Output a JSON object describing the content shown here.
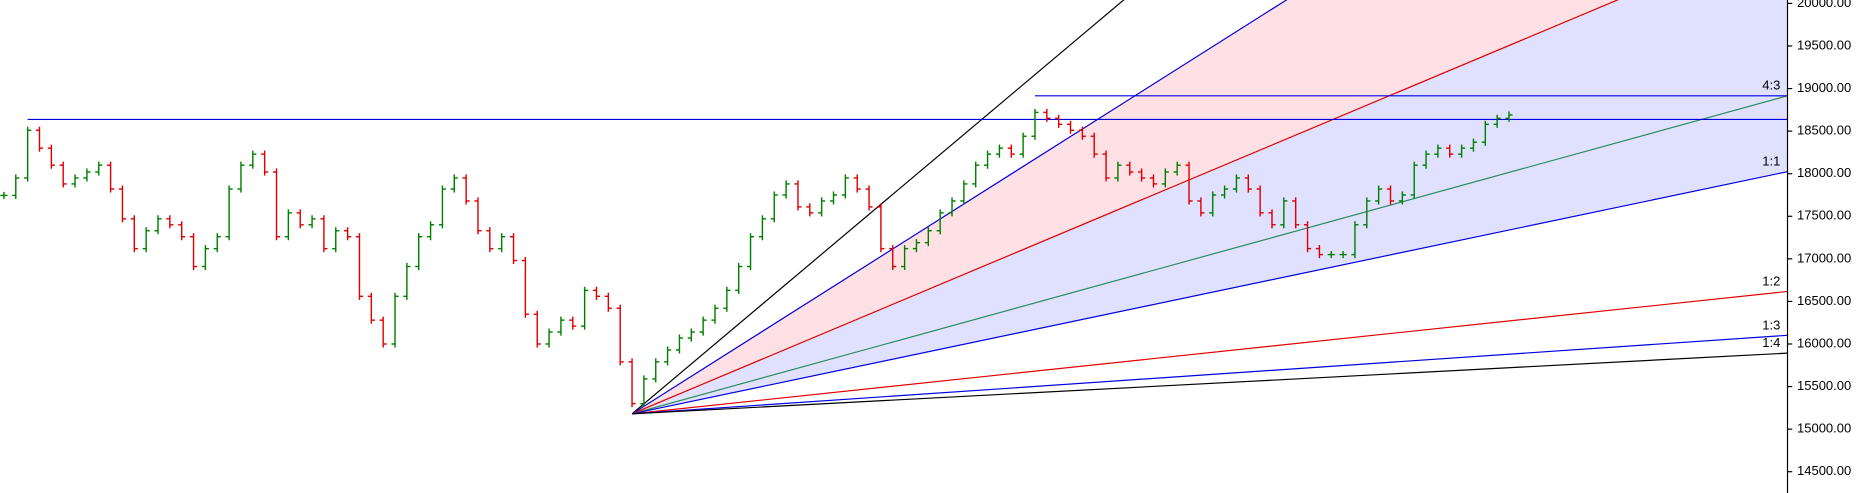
{
  "chart_data": {
    "type": "price_bars",
    "up_color": "#008000",
    "down_color": "#e00000",
    "ylim": [
      14250,
      20040
    ],
    "yticks": [
      {
        "value": 14500,
        "label": "14500.00"
      },
      {
        "value": 15000,
        "label": "15000.00"
      },
      {
        "value": 15500,
        "label": "15500.00"
      },
      {
        "value": 16000,
        "label": "16000.00"
      },
      {
        "value": 16500,
        "label": "16500.00"
      },
      {
        "value": 17000,
        "label": "17000.00"
      },
      {
        "value": 17500,
        "label": "17500.00"
      },
      {
        "value": 18000,
        "label": "18000.00"
      },
      {
        "value": 18500,
        "label": "18500.00"
      },
      {
        "value": 19000,
        "label": "19000.00"
      },
      {
        "value": 19500,
        "label": "19500.00"
      },
      {
        "value": 20000,
        "label": "20000.00"
      }
    ],
    "values": [
      17745,
      17950,
      18510,
      18300,
      18100,
      17880,
      17950,
      18020,
      18100,
      17820,
      17470,
      17120,
      17330,
      17470,
      17400,
      17260,
      16910,
      17120,
      17260,
      17820,
      18100,
      18230,
      18020,
      17260,
      17540,
      17400,
      17470,
      17120,
      17330,
      17260,
      16560,
      16280,
      16000,
      16560,
      16910,
      17260,
      17400,
      17820,
      17950,
      17680,
      17330,
      17120,
      17260,
      16980,
      16350,
      16000,
      16140,
      16280,
      16210,
      16630,
      16560,
      16420,
      15790,
      15300,
      15590,
      15790,
      15930,
      16070,
      16140,
      16280,
      16420,
      16630,
      16910,
      17260,
      17470,
      17750,
      17880,
      17610,
      17540,
      17680,
      17750,
      17950,
      17820,
      17610,
      17120,
      16910,
      17120,
      17190,
      17330,
      17540,
      17680,
      17880,
      18100,
      18230,
      18300,
      18230,
      18440,
      18720,
      18650,
      18580,
      18510,
      18440,
      18230,
      17950,
      18100,
      18020,
      17950,
      17880,
      18020,
      18100,
      17680,
      17540,
      17750,
      17820,
      17950,
      17820,
      17540,
      17400,
      17680,
      17400,
      17120,
      17050,
      17050,
      17050,
      17400,
      17680,
      17820,
      17680,
      17750,
      18100,
      18230,
      18300,
      18230,
      18300,
      18370,
      18580,
      18650,
      18690
    ],
    "levels": [
      {
        "value": 18637,
        "start_index": 2,
        "color": "#0000e0"
      },
      {
        "value": 18915,
        "start_index": 87,
        "color": "#0000e0"
      }
    ],
    "fan": {
      "origin_index": 53,
      "origin_value": 15180,
      "lines": [
        {
          "end_value": 26603,
          "color": "#000000"
        },
        {
          "end_value": 23762,
          "color": "#0000e0",
          "fill_below": "#ffe0e4"
        },
        {
          "end_value": 20879,
          "color": "#e00000",
          "fill_below": "#e0e0ff"
        },
        {
          "label": "4:3",
          "end_value": 18915,
          "color": "#2e8b57",
          "fill_below": "#e0e0ff"
        },
        {
          "label": "1:1",
          "end_value": 18024,
          "color": "#0000e0"
        },
        {
          "label": "1:2",
          "end_value": 16617,
          "color": "#e00000"
        },
        {
          "label": "1:3",
          "end_value": 16102,
          "color": "#0000e0"
        },
        {
          "label": "1:4",
          "end_value": 15893,
          "color": "#000000"
        }
      ]
    }
  }
}
